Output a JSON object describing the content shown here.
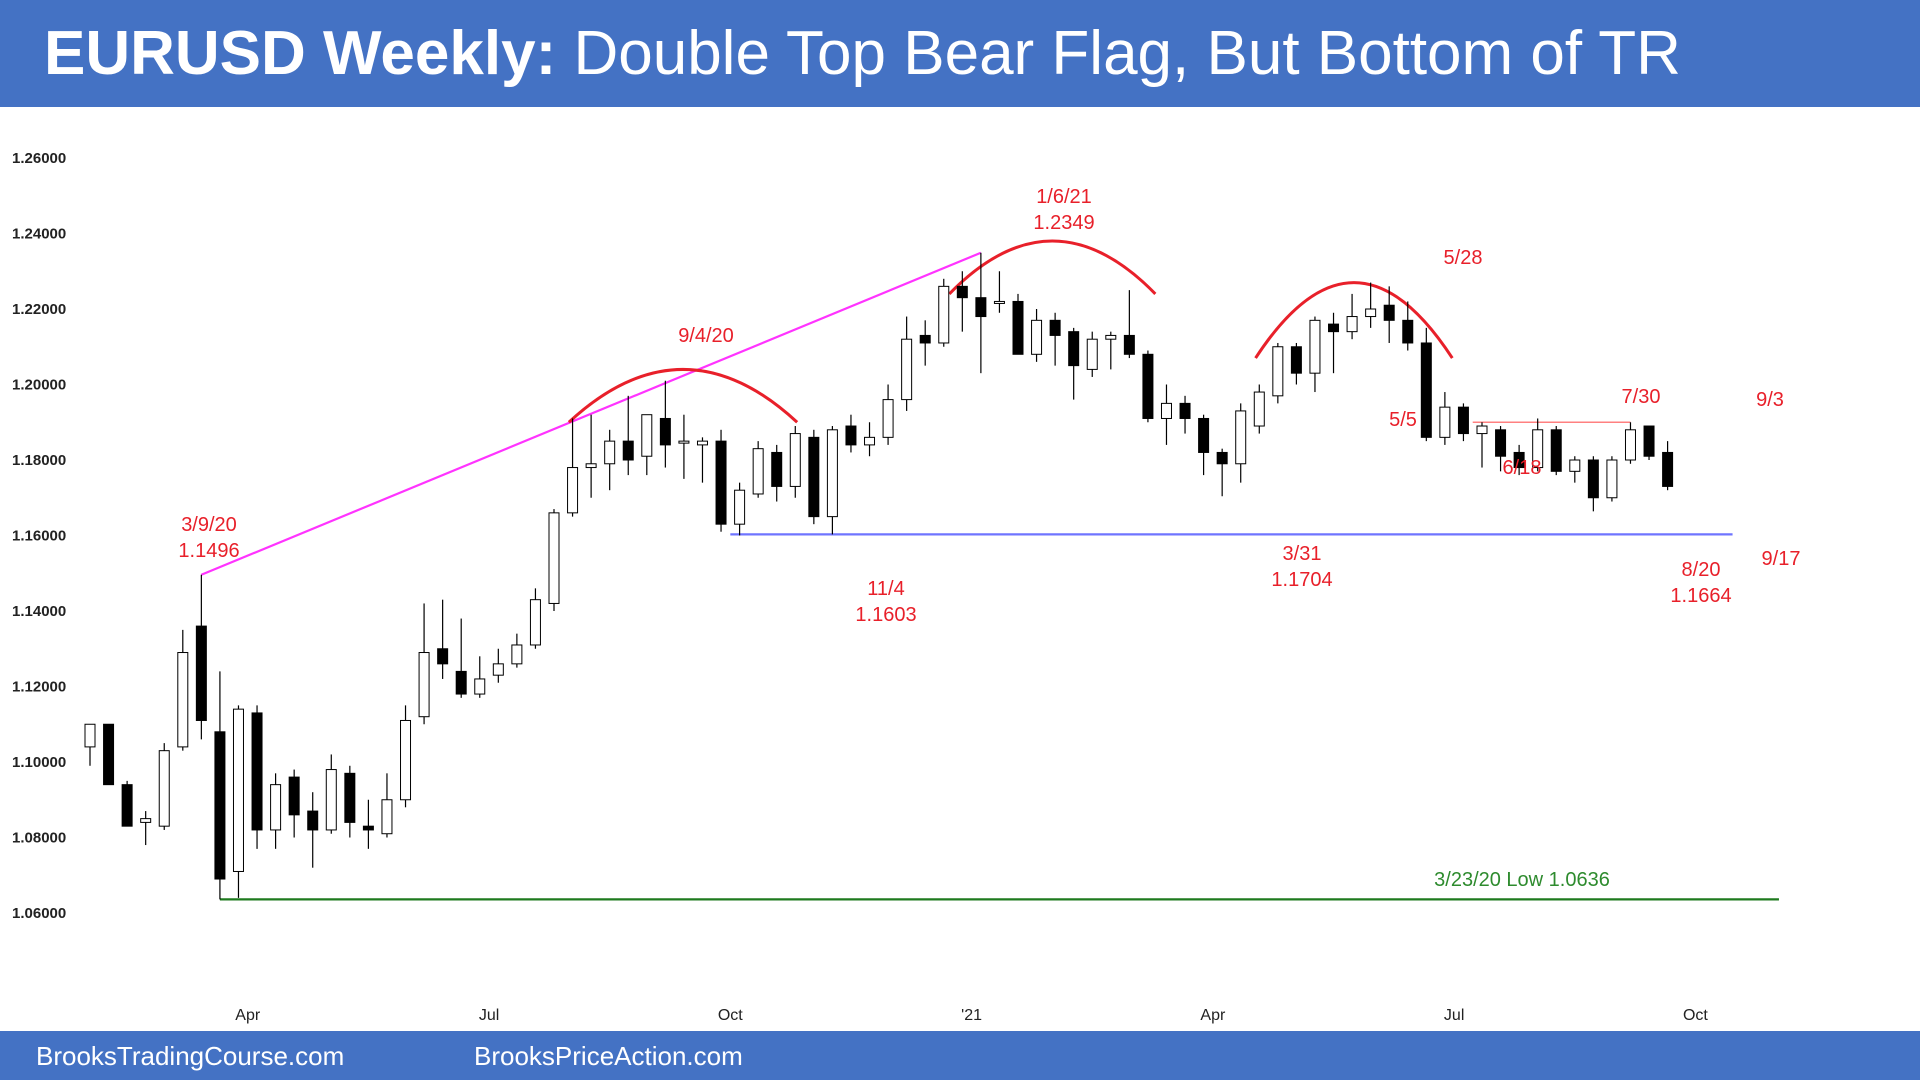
{
  "header": {
    "title_bold": "EURUSD Weekly:",
    "title_rest": " Double Top Bear Flag, But Bottom of TR"
  },
  "footer": {
    "link1": "BrooksTradingCourse.com",
    "link2": "BrooksPriceAction.com"
  },
  "colors": {
    "banner": "#4472c4",
    "annotation": "#e8202a",
    "trendline": "#ff33ff",
    "support": "#6f74ff",
    "low_line": "#1e7a1e",
    "resistance": "#ff8080"
  },
  "chart_data": {
    "type": "candlestick",
    "title": "",
    "ylim": [
      1.05,
      1.27
    ],
    "yticks": [
      1.06,
      1.08,
      1.1,
      1.12,
      1.14,
      1.16,
      1.18,
      1.2,
      1.22,
      1.24,
      1.26
    ],
    "ytick_labels": [
      "1.06000",
      "1.08000",
      "1.10000",
      "1.12000",
      "1.14000",
      "1.16000",
      "1.18000",
      "1.20000",
      "1.22000",
      "1.24000",
      "1.26000"
    ],
    "xticks": [
      {
        "label": "Apr",
        "index": 8.5
      },
      {
        "label": "Jul",
        "index": 21.5
      },
      {
        "label": "Oct",
        "index": 34.5
      },
      {
        "label": "'21",
        "index": 47.5
      },
      {
        "label": "Apr",
        "index": 60.5
      },
      {
        "label": "Jul",
        "index": 73.5
      },
      {
        "label": "Oct",
        "index": 86.5
      }
    ],
    "candles": [
      [
        1.104,
        1.11,
        1.099,
        1.11
      ],
      [
        1.11,
        1.11,
        1.094,
        1.094
      ],
      [
        1.094,
        1.095,
        1.083,
        1.083
      ],
      [
        1.084,
        1.087,
        1.078,
        1.085
      ],
      [
        1.083,
        1.105,
        1.082,
        1.103
      ],
      [
        1.104,
        1.135,
        1.103,
        1.129
      ],
      [
        1.136,
        1.1496,
        1.106,
        1.111
      ],
      [
        1.108,
        1.124,
        1.0636,
        1.069
      ],
      [
        1.071,
        1.115,
        1.064,
        1.114
      ],
      [
        1.113,
        1.115,
        1.077,
        1.082
      ],
      [
        1.082,
        1.097,
        1.077,
        1.094
      ],
      [
        1.096,
        1.098,
        1.08,
        1.086
      ],
      [
        1.087,
        1.092,
        1.072,
        1.082
      ],
      [
        1.082,
        1.102,
        1.081,
        1.098
      ],
      [
        1.097,
        1.099,
        1.08,
        1.084
      ],
      [
        1.083,
        1.09,
        1.077,
        1.082
      ],
      [
        1.081,
        1.097,
        1.08,
        1.09
      ],
      [
        1.09,
        1.115,
        1.088,
        1.111
      ],
      [
        1.112,
        1.142,
        1.11,
        1.129
      ],
      [
        1.13,
        1.143,
        1.122,
        1.126
      ],
      [
        1.124,
        1.138,
        1.117,
        1.118
      ],
      [
        1.118,
        1.128,
        1.117,
        1.122
      ],
      [
        1.123,
        1.13,
        1.121,
        1.126
      ],
      [
        1.126,
        1.134,
        1.125,
        1.131
      ],
      [
        1.131,
        1.146,
        1.13,
        1.143
      ],
      [
        1.142,
        1.167,
        1.14,
        1.166
      ],
      [
        1.166,
        1.191,
        1.165,
        1.178
      ],
      [
        1.178,
        1.192,
        1.17,
        1.179
      ],
      [
        1.179,
        1.188,
        1.172,
        1.185
      ],
      [
        1.185,
        1.197,
        1.176,
        1.18
      ],
      [
        1.181,
        1.192,
        1.176,
        1.192
      ],
      [
        1.191,
        1.201,
        1.178,
        1.184
      ],
      [
        1.185,
        1.192,
        1.175,
        1.185
      ],
      [
        1.184,
        1.186,
        1.174,
        1.185
      ],
      [
        1.185,
        1.188,
        1.161,
        1.163
      ],
      [
        1.163,
        1.174,
        1.16,
        1.172
      ],
      [
        1.171,
        1.185,
        1.17,
        1.183
      ],
      [
        1.182,
        1.184,
        1.169,
        1.173
      ],
      [
        1.173,
        1.189,
        1.17,
        1.187
      ],
      [
        1.186,
        1.188,
        1.163,
        1.165
      ],
      [
        1.165,
        1.189,
        1.1603,
        1.188
      ],
      [
        1.189,
        1.192,
        1.182,
        1.184
      ],
      [
        1.184,
        1.19,
        1.181,
        1.186
      ],
      [
        1.186,
        1.2,
        1.184,
        1.196
      ],
      [
        1.196,
        1.218,
        1.193,
        1.212
      ],
      [
        1.213,
        1.217,
        1.205,
        1.211
      ],
      [
        1.211,
        1.228,
        1.21,
        1.226
      ],
      [
        1.226,
        1.23,
        1.214,
        1.223
      ],
      [
        1.223,
        1.2349,
        1.203,
        1.218
      ],
      [
        1.222,
        1.23,
        1.219,
        1.222
      ],
      [
        1.222,
        1.224,
        1.208,
        1.208
      ],
      [
        1.208,
        1.22,
        1.206,
        1.217
      ],
      [
        1.217,
        1.219,
        1.205,
        1.213
      ],
      [
        1.214,
        1.215,
        1.196,
        1.205
      ],
      [
        1.204,
        1.214,
        1.202,
        1.212
      ],
      [
        1.212,
        1.214,
        1.204,
        1.213
      ],
      [
        1.213,
        1.225,
        1.207,
        1.208
      ],
      [
        1.208,
        1.209,
        1.19,
        1.191
      ],
      [
        1.191,
        1.2,
        1.184,
        1.195
      ],
      [
        1.195,
        1.197,
        1.187,
        1.191
      ],
      [
        1.191,
        1.192,
        1.176,
        1.182
      ],
      [
        1.182,
        1.183,
        1.1704,
        1.179
      ],
      [
        1.179,
        1.195,
        1.174,
        1.193
      ],
      [
        1.189,
        1.2,
        1.187,
        1.198
      ],
      [
        1.197,
        1.211,
        1.195,
        1.21
      ],
      [
        1.21,
        1.211,
        1.2,
        1.203
      ],
      [
        1.203,
        1.218,
        1.198,
        1.217
      ],
      [
        1.216,
        1.219,
        1.203,
        1.214
      ],
      [
        1.214,
        1.224,
        1.212,
        1.218
      ],
      [
        1.218,
        1.227,
        1.215,
        1.22
      ],
      [
        1.221,
        1.226,
        1.211,
        1.217
      ],
      [
        1.217,
        1.222,
        1.209,
        1.211
      ],
      [
        1.211,
        1.215,
        1.185,
        1.186
      ],
      [
        1.186,
        1.198,
        1.184,
        1.194
      ],
      [
        1.194,
        1.195,
        1.185,
        1.187
      ],
      [
        1.187,
        1.19,
        1.178,
        1.189
      ],
      [
        1.188,
        1.189,
        1.177,
        1.181
      ],
      [
        1.182,
        1.184,
        1.176,
        1.178
      ],
      [
        1.178,
        1.191,
        1.177,
        1.188
      ],
      [
        1.188,
        1.189,
        1.176,
        1.177
      ],
      [
        1.177,
        1.181,
        1.174,
        1.18
      ],
      [
        1.18,
        1.181,
        1.1664,
        1.17
      ],
      [
        1.17,
        1.181,
        1.169,
        1.18
      ],
      [
        1.18,
        1.19,
        1.179,
        1.188
      ],
      [
        1.189,
        1.189,
        1.18,
        1.181
      ],
      [
        1.182,
        1.185,
        1.172,
        1.173
      ]
    ],
    "annotations": [
      {
        "lines": [
          "3/9/20",
          "1.1496"
        ]
      },
      {
        "lines": [
          "9/4/20"
        ]
      },
      {
        "lines": [
          "1/6/21",
          "1.2349"
        ]
      },
      {
        "lines": [
          "11/4",
          "1.1603"
        ]
      },
      {
        "lines": [
          "3/31",
          "1.1704"
        ]
      },
      {
        "lines": [
          "5/28"
        ]
      },
      {
        "lines": [
          "5/5"
        ]
      },
      {
        "lines": [
          "6/18"
        ]
      },
      {
        "lines": [
          "7/30"
        ]
      },
      {
        "lines": [
          "9/3"
        ]
      },
      {
        "lines": [
          "9/17"
        ]
      },
      {
        "lines": [
          "8/20",
          "1.1664"
        ]
      },
      {
        "lines": [
          "3/23/20 Low 1.0636"
        ]
      }
    ],
    "lines": [
      {
        "kind": "trendline",
        "from": [
          6,
          1.1496
        ],
        "to": [
          48,
          1.2349
        ]
      },
      {
        "kind": "support",
        "from": [
          34.5,
          1.1603
        ],
        "to": [
          88.5,
          1.1603
        ]
      },
      {
        "kind": "low",
        "from": [
          7,
          1.0636
        ],
        "to": [
          91,
          1.0636
        ]
      },
      {
        "kind": "resistance",
        "from": [
          74.5,
          1.19
        ],
        "to": [
          83,
          1.19
        ]
      }
    ]
  }
}
